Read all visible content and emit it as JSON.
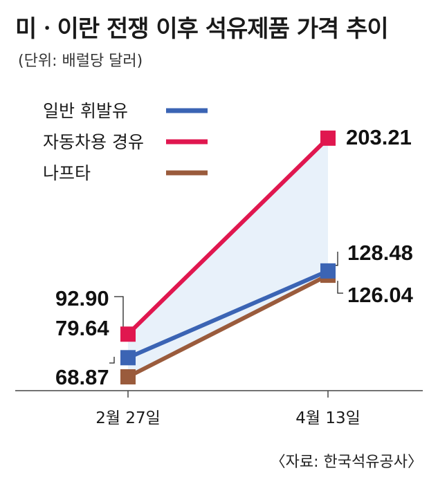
{
  "chart_data": {
    "type": "line",
    "title": "미ㆍ이란 전쟁 이후 석유제품 가격 추이",
    "unit": "(단위: 배럴당 달러)",
    "source": "〈자료: 한국석유공사〉",
    "categories": [
      "2월 27일",
      "4월 13일"
    ],
    "series": [
      {
        "name": "일반 휘발유",
        "color": "#3b64b4",
        "values": [
          79.64,
          128.48
        ],
        "labels": [
          "79.64",
          "128.48"
        ]
      },
      {
        "name": "자동차용 경유",
        "color": "#e0174f",
        "values": [
          92.9,
          203.21
        ],
        "labels": [
          "92.90",
          "203.21"
        ]
      },
      {
        "name": "나프타",
        "color": "#9a5b3c",
        "values": [
          68.87,
          126.04
        ],
        "labels": [
          "68.87",
          "126.04"
        ]
      }
    ],
    "legend_position": "top-left",
    "grid": false
  }
}
